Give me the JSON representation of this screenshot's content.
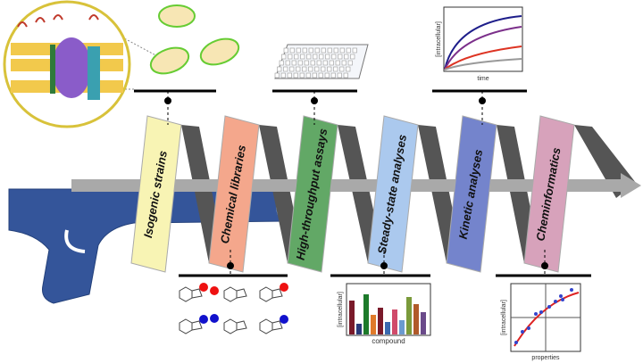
{
  "stages": [
    {
      "label": "Isogenic strains"
    },
    {
      "label": "Chemical libraries"
    },
    {
      "label": "High-throughput assays"
    },
    {
      "label": "Steady-state analyses"
    },
    {
      "label": "Kinetic analyses"
    },
    {
      "label": "Cheminformatics"
    }
  ],
  "kinetics_plot": {
    "y_label": "[intracellular]",
    "x_label": "time"
  },
  "bar_plot": {
    "y_label": "[intracellular]",
    "x_label": "compound"
  },
  "scatter_plot": {
    "y_label": "[intracellular]",
    "x_label": "properties"
  }
}
